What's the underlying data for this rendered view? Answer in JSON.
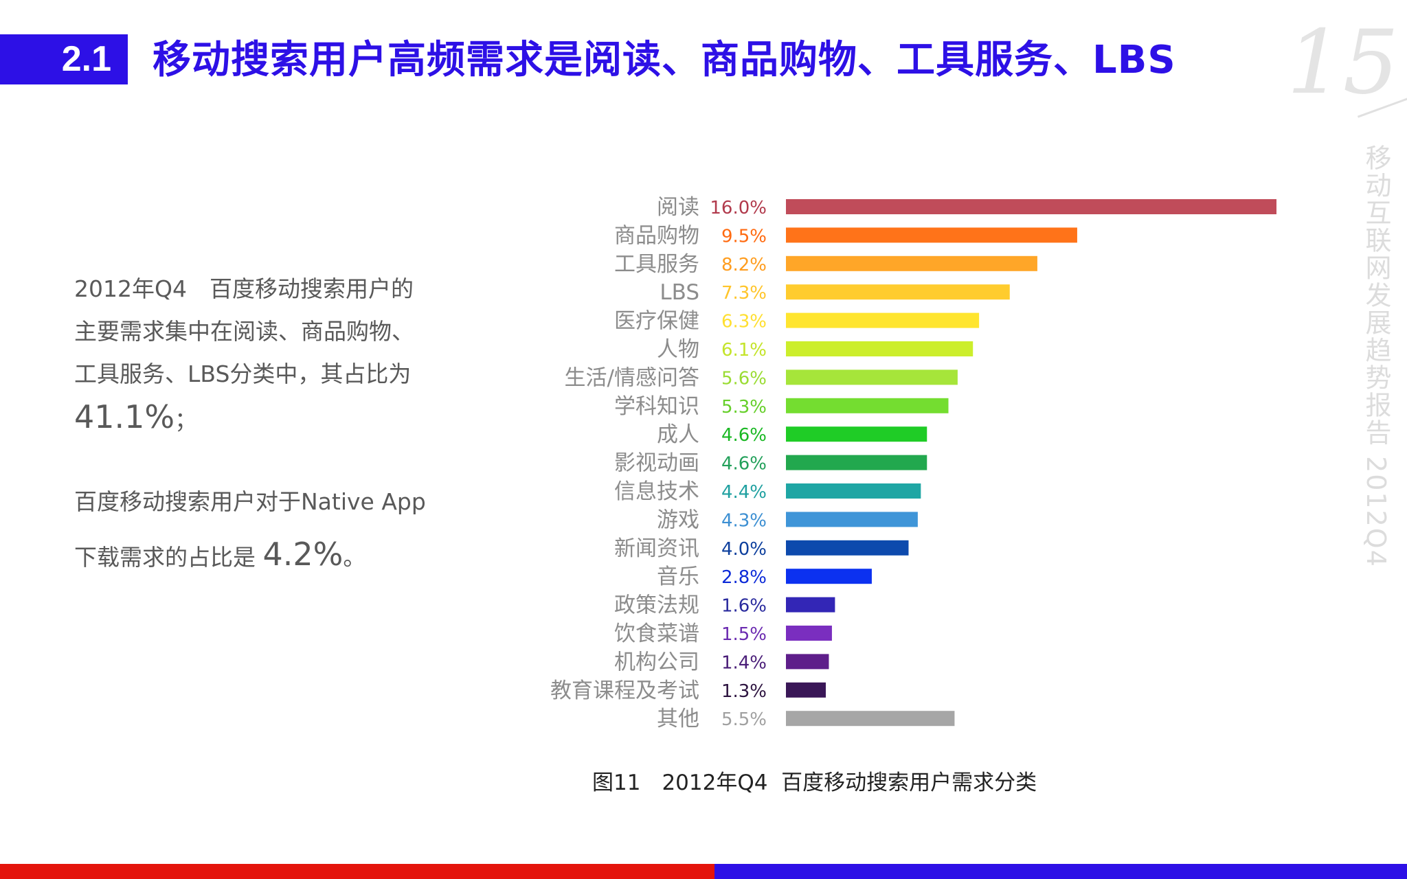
{
  "header": {
    "section_number": "2.1",
    "title": "移动搜索用户高频需求是阅读、商品购物、工具服务、LBS",
    "page_number": "15",
    "side_label": "移动互联网发展趋势报告 2012Q4"
  },
  "summary": {
    "para1_text": "2012年Q4　百度移动搜索用户的主要需求集中在阅读、商品购物、工具服务、LBS分类中，其占比为",
    "para1_value": "41.1%",
    "para1_end": "；",
    "para2_text": "百度移动搜索用户对于Native App下载需求的占比是",
    "para2_value": "4.2%",
    "para2_end": "。"
  },
  "chart_data": {
    "type": "bar",
    "orientation": "horizontal",
    "caption": "图11　2012年Q4  百度移动搜索用户需求分类",
    "categories": [
      "阅读",
      "商品购物",
      "工具服务",
      "LBS",
      "医疗保健",
      "人物",
      "生活/情感问答",
      "学科知识",
      "成人",
      "影视动画",
      "信息技术",
      "游戏",
      "新闻资讯",
      "音乐",
      "政策法规",
      "饮食菜谱",
      "机构公司",
      "教育课程及考试",
      "其他"
    ],
    "values": [
      16.0,
      9.5,
      8.2,
      7.3,
      6.3,
      6.1,
      5.6,
      5.3,
      4.6,
      4.6,
      4.4,
      4.3,
      4.0,
      2.8,
      1.6,
      1.5,
      1.4,
      1.3,
      5.5
    ],
    "value_labels": [
      "16.0%",
      "9.5%",
      "8.2%",
      "7.3%",
      "6.3%",
      "6.1%",
      "5.6%",
      "5.3%",
      "4.6%",
      "4.6%",
      "4.4%",
      "4.3%",
      "4.0%",
      "2.8%",
      "1.6%",
      "1.5%",
      "1.4%",
      "1.3%",
      "5.5%"
    ],
    "colors": [
      "#c04c5a",
      "#ff7319",
      "#ffa628",
      "#ffcc2e",
      "#ffe52f",
      "#ccee2c",
      "#a6e53a",
      "#74dd30",
      "#1fcc26",
      "#22a84e",
      "#1fa6a4",
      "#3f95d8",
      "#0d4aad",
      "#0c31f0",
      "#3326b6",
      "#7a2ebf",
      "#5e1e8a",
      "#3a1757",
      "#a6a6a6"
    ],
    "label_colors": [
      "#b13a4c",
      "#ff6a10",
      "#ff9d1f",
      "#ffc52a",
      "#ffdf30",
      "#c4e42a",
      "#9adc33",
      "#66cf2a",
      "#1ab824",
      "#22a05a",
      "#1fa0a0",
      "#3c8fd2",
      "#0d3f9d",
      "#0d2bd8",
      "#2a2b9e",
      "#6b2bb0",
      "#4a1e78",
      "#2d1440",
      "#a0a0a0"
    ],
    "xlim": [
      0,
      16.0
    ],
    "grid": false,
    "legend": "none"
  }
}
